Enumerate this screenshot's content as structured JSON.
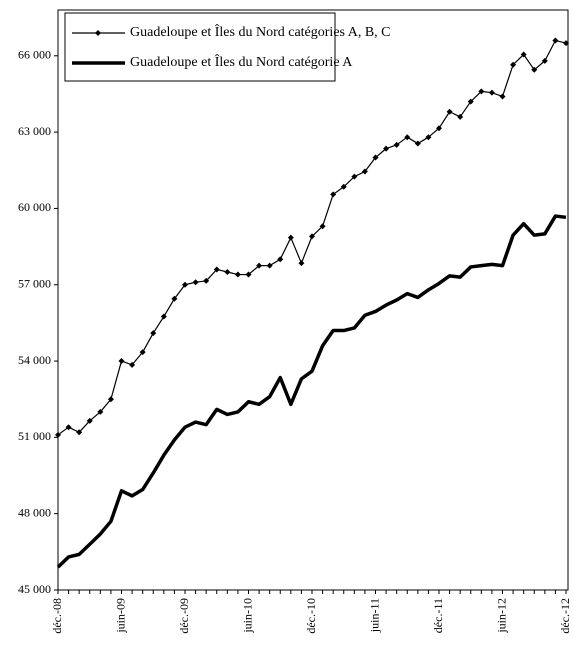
{
  "chart_data": {
    "type": "line",
    "categories": [
      "déc.-08",
      null,
      null,
      null,
      null,
      null,
      "juin-09",
      null,
      null,
      null,
      null,
      null,
      "déc.-09",
      null,
      null,
      null,
      null,
      null,
      "juin-10",
      null,
      null,
      null,
      null,
      null,
      "déc.-10",
      null,
      null,
      null,
      null,
      null,
      "juin-11",
      null,
      null,
      null,
      null,
      null,
      "déc.-11",
      null,
      null,
      null,
      null,
      null,
      "juin-12",
      null,
      null,
      null,
      null,
      null,
      "déc.-12"
    ],
    "series": [
      {
        "name": "Guadeloupe et Îles du Nord catégories A, B, C",
        "color": "#000000",
        "values": [
          51100,
          51400,
          51200,
          51650,
          52000,
          52500,
          54000,
          53850,
          54350,
          55100,
          55750,
          56450,
          57000,
          57100,
          57150,
          57600,
          57500,
          57400,
          57400,
          57750,
          57750,
          58000,
          58850,
          57850,
          58900,
          59300,
          60550,
          60850,
          61250,
          61450,
          62000,
          62350,
          62500,
          62800,
          62550,
          62800,
          63150,
          63800,
          63600,
          64200,
          64600,
          64550,
          64400,
          65650,
          66050,
          65450,
          65800,
          66600,
          66500
        ]
      },
      {
        "name": "Guadeloupe et Îles du Nord catégorie A",
        "color": "#000000",
        "values": [
          45900,
          46300,
          46400,
          46800,
          47200,
          47700,
          48900,
          48700,
          48950,
          49600,
          50300,
          50900,
          51400,
          51600,
          51500,
          52100,
          51900,
          52000,
          52400,
          52300,
          52600,
          53350,
          52300,
          53300,
          53600,
          54600,
          55200,
          55200,
          55300,
          55800,
          55950,
          56200,
          56400,
          56650,
          56500,
          56800,
          57050,
          57350,
          57300,
          57700,
          57750,
          57800,
          57750,
          58950,
          59400,
          58950,
          59000,
          59700,
          59650
        ]
      }
    ],
    "ylim": [
      45000,
      67800
    ],
    "yticks": [
      {
        "value": 45000,
        "label": "45 000"
      },
      {
        "value": 48000,
        "label": "48 000"
      },
      {
        "value": 51000,
        "label": "51 000"
      },
      {
        "value": 54000,
        "label": "54 000"
      },
      {
        "value": 57000,
        "label": "57 000"
      },
      {
        "value": 60000,
        "label": "60 000"
      },
      {
        "value": 63000,
        "label": "63 000"
      },
      {
        "value": 66000,
        "label": "66 000"
      }
    ],
    "grid": false,
    "legend": "top-left"
  }
}
